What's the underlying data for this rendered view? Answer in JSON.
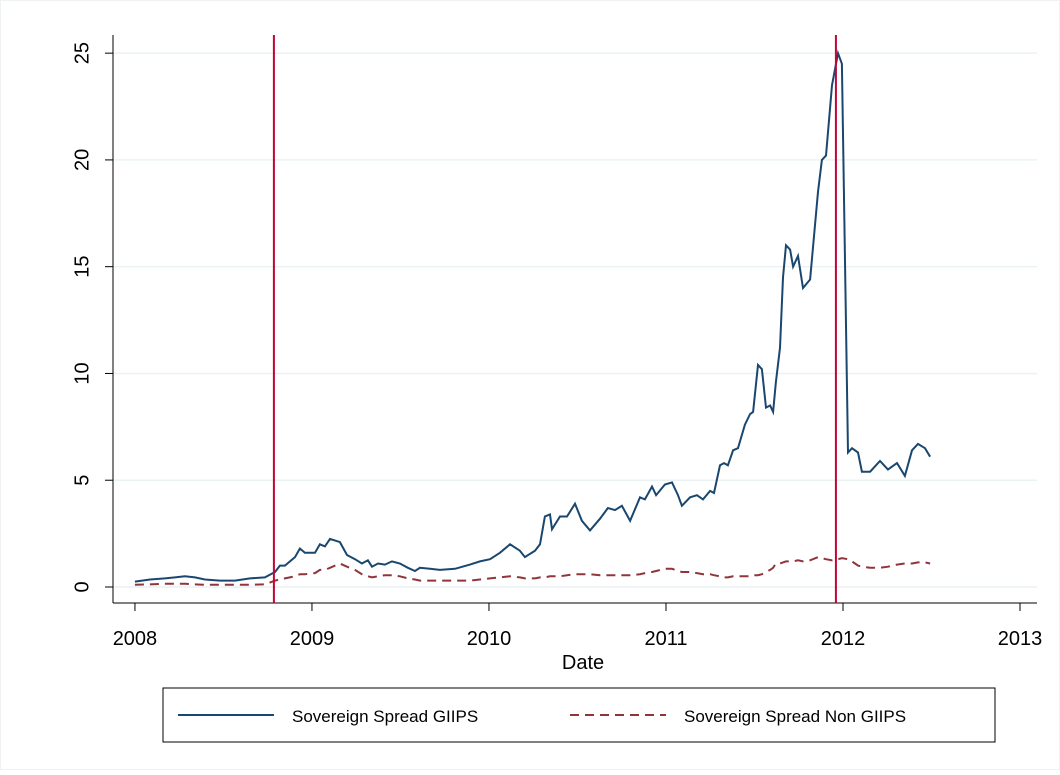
{
  "chart_data": {
    "type": "line",
    "x_label": "Date",
    "x": [
      2008.0,
      2008.085,
      2008.169,
      2008.226,
      2008.282,
      2008.339,
      2008.395,
      2008.48,
      2008.565,
      2008.65,
      2008.734,
      2008.791,
      2008.819,
      2008.847,
      2008.904,
      2008.932,
      2008.96,
      2009.017,
      2009.045,
      2009.073,
      2009.102,
      2009.158,
      2009.198,
      2009.243,
      2009.282,
      2009.316,
      2009.339,
      2009.373,
      2009.412,
      2009.452,
      2009.497,
      2009.542,
      2009.582,
      2009.61,
      2009.667,
      2009.723,
      2009.808,
      2009.893,
      2009.949,
      2010.006,
      2010.062,
      2010.119,
      2010.175,
      2010.203,
      2010.26,
      2010.288,
      2010.316,
      2010.345,
      2010.356,
      2010.401,
      2010.441,
      2010.486,
      2010.525,
      2010.571,
      2010.627,
      2010.672,
      2010.712,
      2010.751,
      2010.797,
      2010.853,
      2010.881,
      2010.921,
      2010.944,
      2010.994,
      2011.034,
      2011.068,
      2011.09,
      2011.136,
      2011.175,
      2011.209,
      2011.249,
      2011.271,
      2011.305,
      2011.328,
      2011.35,
      2011.379,
      2011.407,
      2011.446,
      2011.475,
      2011.492,
      2011.52,
      2011.542,
      2011.565,
      2011.588,
      2011.605,
      2011.621,
      2011.644,
      2011.661,
      2011.678,
      2011.701,
      2011.718,
      2011.746,
      2011.774,
      2011.814,
      2011.859,
      2011.881,
      2011.904,
      2011.938,
      2011.972,
      2011.994,
      2012.028,
      2012.051,
      2012.085,
      2012.107,
      2012.153,
      2012.209,
      2012.254,
      2012.305,
      2012.35,
      2012.39,
      2012.424,
      2012.463,
      2012.492
    ],
    "series": [
      {
        "name": "Sovereign Spread GIIPS",
        "color": "#1a476f",
        "dash": "solid",
        "values": [
          0.25,
          0.35,
          0.4,
          0.45,
          0.5,
          0.45,
          0.35,
          0.3,
          0.3,
          0.4,
          0.45,
          0.7,
          1.0,
          1.0,
          1.4,
          1.8,
          1.6,
          1.6,
          2.0,
          1.9,
          2.25,
          2.1,
          1.5,
          1.3,
          1.1,
          1.25,
          0.95,
          1.1,
          1.05,
          1.2,
          1.1,
          0.9,
          0.75,
          0.9,
          0.85,
          0.8,
          0.85,
          1.05,
          1.2,
          1.3,
          1.6,
          2.0,
          1.7,
          1.4,
          1.7,
          2.0,
          3.3,
          3.4,
          2.7,
          3.3,
          3.3,
          3.9,
          3.1,
          2.65,
          3.2,
          3.7,
          3.6,
          3.8,
          3.1,
          4.2,
          4.1,
          4.7,
          4.3,
          4.8,
          4.9,
          4.3,
          3.8,
          4.2,
          4.3,
          4.1,
          4.5,
          4.4,
          5.7,
          5.8,
          5.7,
          6.4,
          6.5,
          7.6,
          8.1,
          8.2,
          10.4,
          10.2,
          8.4,
          8.5,
          8.2,
          9.6,
          11.2,
          14.5,
          16.0,
          15.8,
          15.0,
          15.5,
          14.0,
          14.4,
          18.5,
          20.0,
          20.2,
          23.5,
          25.0,
          24.5,
          6.3,
          6.5,
          6.3,
          5.4,
          5.4,
          5.9,
          5.5,
          5.8,
          5.2,
          6.4,
          6.7,
          6.5,
          6.1
        ]
      },
      {
        "name": "Sovereign Spread Non GIIPS",
        "color": "#90353b",
        "dash": "dashed",
        "values": [
          0.1,
          0.12,
          0.15,
          0.15,
          0.15,
          0.12,
          0.1,
          0.1,
          0.1,
          0.1,
          0.12,
          0.3,
          0.35,
          0.4,
          0.5,
          0.6,
          0.6,
          0.65,
          0.8,
          0.8,
          0.9,
          1.1,
          0.95,
          0.8,
          0.6,
          0.5,
          0.45,
          0.5,
          0.55,
          0.55,
          0.5,
          0.4,
          0.35,
          0.3,
          0.3,
          0.3,
          0.3,
          0.3,
          0.35,
          0.4,
          0.45,
          0.5,
          0.45,
          0.4,
          0.4,
          0.45,
          0.45,
          0.5,
          0.5,
          0.5,
          0.55,
          0.6,
          0.6,
          0.6,
          0.55,
          0.55,
          0.55,
          0.55,
          0.55,
          0.6,
          0.65,
          0.7,
          0.75,
          0.85,
          0.85,
          0.75,
          0.7,
          0.7,
          0.65,
          0.6,
          0.6,
          0.55,
          0.5,
          0.45,
          0.45,
          0.5,
          0.5,
          0.5,
          0.5,
          0.55,
          0.55,
          0.6,
          0.7,
          0.8,
          0.9,
          1.1,
          1.1,
          1.15,
          1.2,
          1.2,
          1.2,
          1.25,
          1.2,
          1.25,
          1.4,
          1.35,
          1.3,
          1.25,
          1.3,
          1.35,
          1.3,
          1.2,
          1.0,
          0.95,
          0.9,
          0.9,
          0.95,
          1.05,
          1.1,
          1.1,
          1.15,
          1.15,
          1.1
        ]
      }
    ],
    "vlines": [
      2008.785,
      2011.96
    ],
    "vline_color": "#c10534",
    "xlim": [
      2007.876,
      2013.096
    ],
    "xticks": [
      2008,
      2009,
      2010,
      2011,
      2012,
      2013
    ],
    "ylim": [
      -0.75,
      25.85
    ],
    "yticks": [
      0,
      5,
      10,
      15,
      20,
      25
    ],
    "grid": true
  }
}
